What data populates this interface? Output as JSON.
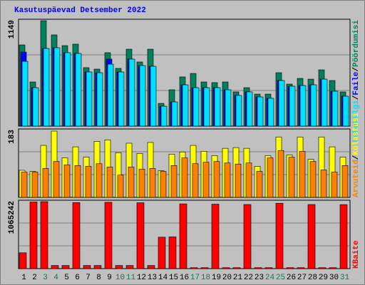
{
  "title": "Kasutuspäevad Detsember 2022",
  "separator": "/",
  "chart_data": [
    {
      "type": "bar",
      "ylim": [
        0,
        1149
      ],
      "series": [
        {
          "name": "Pöördumisi",
          "color": "#00805c",
          "values": [
            885,
            481,
            1149,
            994,
            877,
            893,
            637,
            621,
            800,
            629,
            838,
            699,
            838,
            248,
            396,
            536,
            574,
            481,
            474,
            481,
            373,
            419,
            349,
            349,
            582,
            458,
            520,
            512,
            613,
            497,
            373
          ]
        },
        {
          "name": "Faile",
          "color": "#0000ff",
          "values": [
            807,
            419,
            846,
            854,
            800,
            792,
            590,
            582,
            730,
            590,
            730,
            660,
            652,
            217,
            264,
            450,
            419,
            419,
            419,
            396,
            334,
            373,
            318,
            303,
            497,
            435,
            442,
            450,
            512,
            380,
            326
          ]
        },
        {
          "name": "Lehekülgi",
          "color": "#00e0ff",
          "values": [
            706,
            419,
            846,
            854,
            800,
            792,
            590,
            582,
            675,
            590,
            730,
            660,
            652,
            217,
            264,
            450,
            419,
            419,
            419,
            396,
            334,
            373,
            318,
            303,
            497,
            435,
            442,
            450,
            512,
            380,
            326
          ]
        }
      ]
    },
    {
      "type": "bar",
      "ylim": [
        0,
        183
      ],
      "series": [
        {
          "name": "Arvuteid",
          "color": "#ff8000",
          "values": [
            69,
            69,
            79,
            98,
            89,
            87,
            85,
            92,
            83,
            61,
            83,
            77,
            79,
            71,
            87,
            108,
            92,
            96,
            98,
            94,
            91,
            94,
            71,
            108,
            128,
            110,
            126,
            98,
            75,
            69,
            87
          ]
        },
        {
          "name": "Külastusi",
          "color": "#ffff00",
          "values": [
            74,
            71,
            142,
            181,
            108,
            138,
            110,
            153,
            157,
            122,
            148,
            120,
            150,
            73,
            118,
            124,
            142,
            126,
            114,
            134,
            136,
            134,
            85,
            114,
            165,
            116,
            165,
            104,
            165,
            138,
            110
          ]
        }
      ]
    },
    {
      "type": "bar",
      "ylim": [
        0,
        1065242
      ],
      "categories": [
        "1",
        "2",
        "3",
        "4",
        "5",
        "6",
        "7",
        "8",
        "9",
        "10",
        "11",
        "12",
        "13",
        "14",
        "15",
        "16",
        "17",
        "18",
        "19",
        "20",
        "21",
        "22",
        "23",
        "24",
        "25",
        "26",
        "27",
        "28",
        "29",
        "30",
        "31"
      ],
      "category_colors": [
        "#000000",
        "#000000",
        "#00805c",
        "#00805c",
        "#000000",
        "#000000",
        "#000000",
        "#000000",
        "#000000",
        "#00805c",
        "#00805c",
        "#000000",
        "#000000",
        "#000000",
        "#000000",
        "#000000",
        "#00805c",
        "#00805c",
        "#000000",
        "#000000",
        "#000000",
        "#000000",
        "#000000",
        "#00805c",
        "#00805c",
        "#000000",
        "#000000",
        "#000000",
        "#000000",
        "#000000",
        "#00805c"
      ],
      "series": [
        {
          "name": "KBaite",
          "color": "#ff0000",
          "values": [
            252000,
            1060000,
            1065242,
            50000,
            50000,
            1050000,
            50000,
            50000,
            1055000,
            50000,
            50000,
            1048000,
            50000,
            500000,
            505000,
            1030000,
            15000,
            15000,
            1025000,
            15000,
            15000,
            1020000,
            15000,
            15000,
            1040000,
            15000,
            15000,
            1020000,
            15000,
            15000,
            1018000
          ]
        }
      ]
    }
  ]
}
